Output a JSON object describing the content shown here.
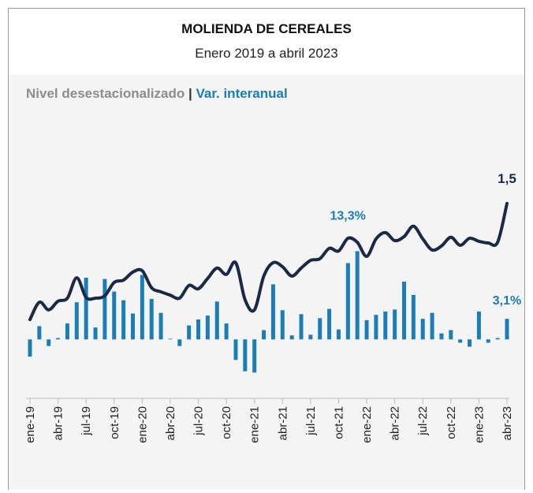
{
  "chart_data": {
    "type": "bar_line",
    "title": "MOLIENDA DE CEREALES",
    "subtitle": "Enero 2019 a abril 2023",
    "legend_separator": "|",
    "categories": [
      "ene-19",
      null,
      null,
      "abr-19",
      null,
      null,
      "jul-19",
      null,
      null,
      "oct-19",
      null,
      null,
      "ene-20",
      null,
      null,
      "abr-20",
      null,
      null,
      "jul-20",
      null,
      null,
      "oct-20",
      null,
      null,
      "ene-21",
      null,
      null,
      "abr-21",
      null,
      null,
      "jul-21",
      null,
      null,
      "oct-21",
      null,
      null,
      "ene-22",
      null,
      null,
      "abr-22",
      null,
      null,
      "jul-22",
      null,
      null,
      "oct-22",
      null,
      null,
      "ene-23",
      null,
      null,
      "abr-23"
    ],
    "ylim": [
      -7.1,
      34.5
    ],
    "y2lim": [
      0.953,
      1.778
    ],
    "series": [
      {
        "name": "Nivel desestacionalizado",
        "color": "#1b2a44",
        "legend_color": "#8c8c8c",
        "type": "line",
        "axis": "y2",
        "values": [
          1.153,
          1.205,
          1.182,
          1.208,
          1.217,
          1.278,
          1.219,
          1.217,
          1.224,
          1.264,
          1.271,
          1.295,
          1.299,
          1.248,
          1.236,
          1.226,
          1.217,
          1.255,
          1.245,
          1.276,
          1.307,
          1.288,
          1.323,
          1.212,
          1.182,
          1.283,
          1.323,
          1.311,
          1.283,
          1.307,
          1.33,
          1.335,
          1.366,
          1.358,
          1.396,
          1.384,
          1.342,
          1.394,
          1.413,
          1.389,
          1.401,
          1.432,
          1.394,
          1.361,
          1.373,
          1.399,
          1.375,
          1.396,
          1.387,
          1.382,
          1.384,
          1.5
        ],
        "value_labels": [
          null,
          null,
          null,
          null,
          null,
          null,
          null,
          null,
          null,
          null,
          null,
          null,
          null,
          null,
          null,
          null,
          null,
          null,
          null,
          null,
          null,
          null,
          null,
          null,
          null,
          null,
          null,
          null,
          null,
          null,
          null,
          null,
          null,
          null,
          null,
          null,
          null,
          null,
          null,
          null,
          null,
          null,
          null,
          null,
          null,
          null,
          null,
          null,
          null,
          null,
          null,
          "1,5"
        ]
      },
      {
        "name": "Var. interanual",
        "color": "#1a7db5",
        "legend_color": "#1a7db5",
        "type": "bar",
        "values": [
          -2.6,
          2.0,
          -1.0,
          0.2,
          2.4,
          5.6,
          9.3,
          1.8,
          9.1,
          7.2,
          5.9,
          3.9,
          9.7,
          6.1,
          4.0,
          0.1,
          -1.0,
          2.1,
          3.0,
          3.6,
          5.7,
          2.4,
          -3.1,
          -4.8,
          -5.0,
          1.4,
          8.3,
          4.4,
          0.6,
          3.8,
          0.7,
          3.2,
          4.6,
          1.5,
          11.5,
          13.3,
          2.9,
          3.7,
          4.2,
          4.5,
          8.7,
          6.7,
          3.1,
          4.0,
          0.9,
          1.4,
          -0.5,
          -1.1,
          4.2,
          -0.5,
          0.2,
          3.1
        ],
        "value_labels": [
          null,
          null,
          null,
          null,
          null,
          null,
          null,
          null,
          null,
          null,
          null,
          null,
          null,
          null,
          null,
          null,
          null,
          null,
          null,
          null,
          null,
          null,
          null,
          null,
          null,
          null,
          null,
          null,
          null,
          null,
          null,
          null,
          null,
          null,
          null,
          "13,3%",
          null,
          null,
          null,
          null,
          null,
          null,
          null,
          null,
          null,
          null,
          null,
          null,
          null,
          null,
          null,
          "3,1%"
        ]
      }
    ]
  }
}
